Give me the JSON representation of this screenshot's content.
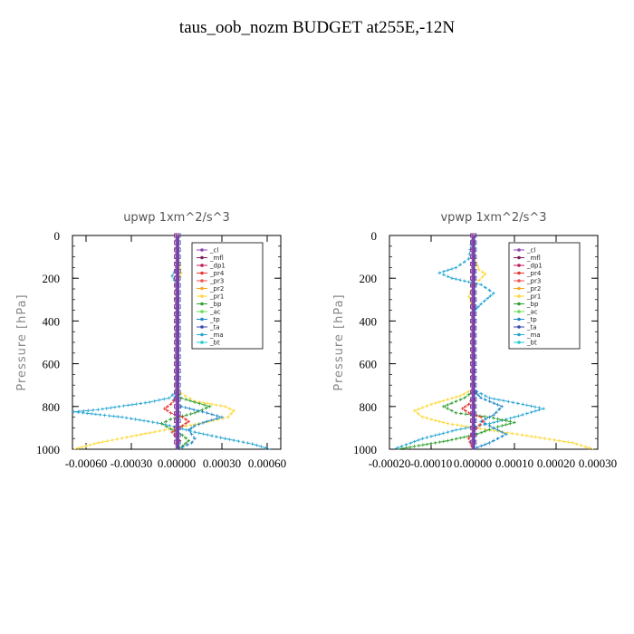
{
  "title": "taus_oob_nozm  BUDGET at255E,-12N",
  "legend": [
    {
      "name": "_cl",
      "color": "#8e44ad"
    },
    {
      "name": "_mfl",
      "color": "#7a1f5c"
    },
    {
      "name": "_dp1",
      "color": "#c2185b"
    },
    {
      "name": "_pr4",
      "color": "#e53935"
    },
    {
      "name": "_pr3",
      "color": "#ef5350"
    },
    {
      "name": "_pr2",
      "color": "#f9a825"
    },
    {
      "name": "_pr1",
      "color": "#fdd835"
    },
    {
      "name": "_bp",
      "color": "#2e9e2e"
    },
    {
      "name": "_ac",
      "color": "#66dd55"
    },
    {
      "name": "_tp",
      "color": "#1e88c8"
    },
    {
      "name": "_ta",
      "color": "#3949ab"
    },
    {
      "name": "_ma",
      "color": "#26a6d1"
    },
    {
      "name": "_bt",
      "color": "#22cccc"
    }
  ],
  "chart_data": [
    {
      "type": "line",
      "title": "upwp   1xm^2/s^3",
      "ylabel": "Pressure [hPa]",
      "xlabel": "",
      "xlim": [
        -0.00069,
        0.00069
      ],
      "ylim": [
        1000,
        0
      ],
      "xticks": [
        -0.0006,
        -0.0003,
        0.0,
        0.0003,
        0.0006
      ],
      "xtick_labels": [
        "-0.00060",
        "-0.00030",
        "0.00000",
        "0.00030",
        "0.00060"
      ],
      "yticks": [
        0,
        200,
        400,
        600,
        800,
        1000
      ],
      "ytick_labels": [
        "0",
        "200",
        "400",
        "600",
        "800",
        "1000"
      ],
      "legend_position": "top-right",
      "series": [
        {
          "name": "_pr1",
          "color": "#fdd835",
          "x": [
            0,
            1e-05,
            3e-05,
            1e-05,
            0,
            0,
            0,
            3e-05,
            0.00012,
            0.00032,
            0.00038,
            0.00034,
            0.00015,
            -8e-05,
            -0.0003,
            -0.00052,
            -0.00068
          ],
          "y": [
            0,
            100,
            175,
            210,
            240,
            400,
            700,
            740,
            775,
            800,
            820,
            850,
            880,
            910,
            940,
            970,
            1000
          ]
        },
        {
          "name": "_ma",
          "color": "#26a6d1",
          "x": [
            0,
            0,
            -3e-05,
            0,
            0,
            0,
            -5e-05,
            -0.00018,
            -0.00038,
            -0.00052,
            -0.00068,
            -0.00036,
            -0.0001,
            0.00012,
            0.00032,
            0.0005,
            0.00062
          ],
          "y": [
            0,
            150,
            190,
            230,
            400,
            730,
            760,
            780,
            800,
            815,
            825,
            850,
            880,
            920,
            950,
            975,
            1000
          ]
        },
        {
          "name": "_bp",
          "color": "#2e9e2e",
          "x": [
            0,
            0,
            3e-05,
            0.00012,
            0.00022,
            0.00012,
            -4e-05,
            -0.0001,
            -4e-05,
            4e-05,
            8e-05,
            4e-05,
            0
          ],
          "y": [
            0,
            730,
            760,
            780,
            800,
            830,
            860,
            880,
            905,
            935,
            960,
            985,
            1000
          ]
        },
        {
          "name": "_tp",
          "color": "#1e88c8",
          "x": [
            0,
            0,
            0,
            -2e-05,
            3e-05,
            0.0002,
            0.0003,
            0.0002,
            0.00012,
            8e-05,
            0.0001,
            0.00012,
            0.0001,
            4e-05,
            0
          ],
          "y": [
            0,
            700,
            740,
            770,
            800,
            830,
            850,
            870,
            890,
            910,
            930,
            950,
            970,
            990,
            1000
          ]
        },
        {
          "name": "_pr4",
          "color": "#e53935",
          "x": [
            0,
            0,
            -4e-05,
            -8e-05,
            -4e-05,
            4e-05,
            8e-05,
            4e-05,
            -3e-05,
            2e-05,
            0
          ],
          "y": [
            0,
            760,
            790,
            810,
            830,
            850,
            870,
            890,
            920,
            960,
            1000
          ]
        },
        {
          "name": "_ta",
          "color": "#3949ab",
          "x": [
            1e-05,
            1e-05,
            1e-05
          ],
          "y": [
            0,
            500,
            1000
          ]
        },
        {
          "name": "_mfl",
          "color": "#7a1f5c",
          "x": [
            0,
            0,
            0
          ],
          "y": [
            0,
            500,
            1000
          ]
        },
        {
          "name": "_cl",
          "color": "#8e44ad",
          "x": [
            0,
            0,
            0
          ],
          "y": [
            0,
            500,
            1000
          ]
        }
      ]
    },
    {
      "type": "line",
      "title": "vpwp   1xm^2/s^3",
      "ylabel": "Pressure [hPa]",
      "xlabel": "",
      "xlim": [
        -0.0002,
        0.0003
      ],
      "ylim": [
        1000,
        0
      ],
      "xticks": [
        -0.0002,
        -0.0001,
        0.0,
        0.0001,
        0.0002,
        0.0003
      ],
      "xtick_labels": [
        "-0.00020",
        "-0.00010",
        "0.00000",
        "0.00010",
        "0.00020",
        "0.00030"
      ],
      "yticks": [
        0,
        200,
        400,
        600,
        800,
        1000
      ],
      "ytick_labels": [
        "0",
        "200",
        "400",
        "600",
        "800",
        "1000"
      ],
      "legend_position": "top-right",
      "series": [
        {
          "name": "_pr1",
          "color": "#fdd835",
          "x": [
            0,
            5e-06,
            1.5e-05,
            3e-05,
            1.5e-05,
            -5e-06,
            -1e-05,
            -5e-06,
            0,
            0,
            -3e-05,
            -0.0001,
            -0.00014,
            -0.00012,
            -6e-05,
            4e-05,
            0.00014,
            0.00024,
            0.00029
          ],
          "y": [
            0,
            110,
            160,
            180,
            210,
            260,
            285,
            310,
            350,
            720,
            750,
            790,
            820,
            850,
            880,
            910,
            940,
            970,
            1000
          ]
        },
        {
          "name": "_ma",
          "color": "#26a6d1",
          "x": [
            0,
            -1e-05,
            -4e-05,
            -8e-05,
            -5e-05,
            2e-05,
            5e-05,
            2e-05,
            0,
            0,
            4e-05,
            0.00012,
            0.00017,
            0.0001,
            4e-05,
            -4e-05,
            -0.00012,
            -0.00019
          ],
          "y": [
            0,
            110,
            150,
            175,
            200,
            230,
            270,
            320,
            360,
            720,
            760,
            790,
            810,
            850,
            880,
            910,
            950,
            1000
          ]
        },
        {
          "name": "_bp",
          "color": "#2e9e2e",
          "x": [
            0,
            0,
            -2e-05,
            -7e-05,
            -4e-05,
            4e-05,
            0.0001,
            5e-05,
            1e-05,
            -6e-05,
            -0.00012,
            -0.00018
          ],
          "y": [
            0,
            730,
            760,
            800,
            830,
            850,
            875,
            900,
            930,
            960,
            980,
            1000
          ]
        },
        {
          "name": "_tp",
          "color": "#1e88c8",
          "x": [
            0,
            0,
            2e-05,
            7e-05,
            5e-05,
            2e-05,
            5e-05,
            8e-05,
            4e-05,
            0
          ],
          "y": [
            0,
            720,
            760,
            800,
            840,
            870,
            900,
            930,
            970,
            1000
          ]
        },
        {
          "name": "_pr4",
          "color": "#e53935",
          "x": [
            0,
            0,
            -1e-05,
            -2.5e-05,
            -1e-05,
            2e-05,
            2.5e-05,
            1e-05,
            -1e-05,
            0
          ],
          "y": [
            0,
            760,
            790,
            810,
            830,
            850,
            870,
            900,
            950,
            1000
          ]
        },
        {
          "name": "_ta",
          "color": "#3949ab",
          "x": [
            3e-06,
            3e-06,
            3e-06
          ],
          "y": [
            0,
            500,
            1000
          ]
        },
        {
          "name": "_mfl",
          "color": "#7a1f5c",
          "x": [
            0,
            0,
            0
          ],
          "y": [
            0,
            500,
            1000
          ]
        },
        {
          "name": "_cl",
          "color": "#8e44ad",
          "x": [
            0,
            0,
            0
          ],
          "y": [
            0,
            500,
            1000
          ]
        }
      ]
    }
  ]
}
